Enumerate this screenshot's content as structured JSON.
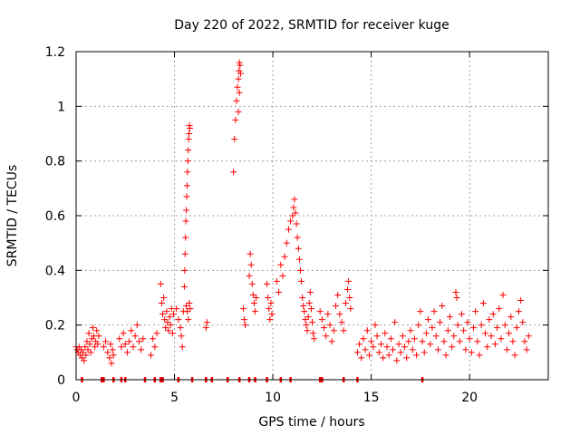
{
  "chart_data": {
    "type": "scatter",
    "title": "Day 220 of 2022, SRMTID for receiver kuge",
    "xlabel": "GPS time / hours",
    "ylabel": "SRMTID / TECUs",
    "xlim": [
      0,
      24
    ],
    "ylim": [
      0,
      1.2
    ],
    "x_ticks": [
      0,
      5,
      10,
      15,
      20
    ],
    "x_tick_labels": [
      "0",
      "5",
      "10",
      "15",
      "20"
    ],
    "y_ticks": [
      0,
      0.2,
      0.4,
      0.6,
      0.8,
      1.0,
      1.2
    ],
    "y_tick_labels": [
      "0",
      "0.2",
      "0.4",
      "0.6",
      "0.8",
      "1",
      "1.2"
    ],
    "grid": true,
    "marker": "plus",
    "color": "#ff0000",
    "series": [
      {
        "name": "SRMTID",
        "points": [
          [
            0.0,
            0.12
          ],
          [
            0.05,
            0.11
          ],
          [
            0.1,
            0.1
          ],
          [
            0.15,
            0.12
          ],
          [
            0.2,
            0.09
          ],
          [
            0.25,
            0.11
          ],
          [
            0.3,
            0.08
          ],
          [
            0.35,
            0.1
          ],
          [
            0.4,
            0.07
          ],
          [
            0.45,
            0.12
          ],
          [
            0.5,
            0.09
          ],
          [
            0.55,
            0.14
          ],
          [
            0.6,
            0.11
          ],
          [
            0.65,
            0.17
          ],
          [
            0.7,
            0.13
          ],
          [
            0.75,
            0.1
          ],
          [
            0.8,
            0.15
          ],
          [
            0.85,
            0.19
          ],
          [
            0.9,
            0.16
          ],
          [
            0.95,
            0.12
          ],
          [
            1.0,
            0.14
          ],
          [
            1.05,
            0.18
          ],
          [
            1.1,
            0.13
          ],
          [
            1.15,
            0.16
          ],
          [
            1.4,
            0.12
          ],
          [
            1.5,
            0.14
          ],
          [
            1.6,
            0.1
          ],
          [
            1.7,
            0.08
          ],
          [
            1.75,
            0.13
          ],
          [
            1.8,
            0.06
          ],
          [
            1.85,
            0.11
          ],
          [
            1.9,
            0.09
          ],
          [
            2.2,
            0.15
          ],
          [
            2.3,
            0.12
          ],
          [
            2.4,
            0.17
          ],
          [
            2.5,
            0.13
          ],
          [
            2.6,
            0.1
          ],
          [
            2.7,
            0.14
          ],
          [
            2.8,
            0.18
          ],
          [
            2.9,
            0.12
          ],
          [
            3.0,
            0.16
          ],
          [
            3.1,
            0.2
          ],
          [
            3.2,
            0.14
          ],
          [
            3.3,
            0.11
          ],
          [
            3.4,
            0.15
          ],
          [
            3.8,
            0.09
          ],
          [
            3.9,
            0.15
          ],
          [
            4.0,
            0.12
          ],
          [
            4.1,
            0.17
          ],
          [
            4.3,
            0.35
          ],
          [
            4.35,
            0.28
          ],
          [
            4.4,
            0.24
          ],
          [
            4.45,
            0.3
          ],
          [
            4.5,
            0.22
          ],
          [
            4.55,
            0.19
          ],
          [
            4.6,
            0.25
          ],
          [
            4.65,
            0.21
          ],
          [
            4.7,
            0.18
          ],
          [
            4.75,
            0.23
          ],
          [
            4.8,
            0.2
          ],
          [
            4.85,
            0.26
          ],
          [
            4.9,
            0.17
          ],
          [
            4.95,
            0.24
          ],
          [
            5.1,
            0.26
          ],
          [
            5.2,
            0.22
          ],
          [
            5.3,
            0.19
          ],
          [
            5.35,
            0.16
          ],
          [
            5.4,
            0.12
          ],
          [
            5.45,
            0.25
          ],
          [
            5.5,
            0.34
          ],
          [
            5.52,
            0.4
          ],
          [
            5.54,
            0.46
          ],
          [
            5.56,
            0.52
          ],
          [
            5.58,
            0.58
          ],
          [
            5.6,
            0.62
          ],
          [
            5.62,
            0.67
          ],
          [
            5.64,
            0.71
          ],
          [
            5.66,
            0.76
          ],
          [
            5.68,
            0.8
          ],
          [
            5.7,
            0.84
          ],
          [
            5.72,
            0.88
          ],
          [
            5.74,
            0.9
          ],
          [
            5.76,
            0.93
          ],
          [
            5.78,
            0.92
          ],
          [
            5.6,
            0.27
          ],
          [
            5.65,
            0.25
          ],
          [
            5.7,
            0.22
          ],
          [
            5.75,
            0.28
          ],
          [
            5.8,
            0.26
          ],
          [
            6.6,
            0.19
          ],
          [
            6.65,
            0.21
          ],
          [
            8.0,
            0.76
          ],
          [
            8.05,
            0.88
          ],
          [
            8.1,
            0.95
          ],
          [
            8.15,
            1.02
          ],
          [
            8.2,
            1.07
          ],
          [
            8.25,
            1.1
          ],
          [
            8.28,
            1.13
          ],
          [
            8.3,
            1.16
          ],
          [
            8.33,
            1.15
          ],
          [
            8.36,
            1.12
          ],
          [
            8.3,
            1.05
          ],
          [
            8.25,
            0.98
          ],
          [
            8.5,
            0.26
          ],
          [
            8.55,
            0.22
          ],
          [
            8.6,
            0.2
          ],
          [
            8.8,
            0.38
          ],
          [
            8.85,
            0.46
          ],
          [
            8.9,
            0.42
          ],
          [
            8.95,
            0.35
          ],
          [
            9.0,
            0.31
          ],
          [
            9.05,
            0.28
          ],
          [
            9.1,
            0.25
          ],
          [
            9.15,
            0.3
          ],
          [
            9.7,
            0.35
          ],
          [
            9.75,
            0.3
          ],
          [
            9.8,
            0.26
          ],
          [
            9.85,
            0.22
          ],
          [
            9.9,
            0.28
          ],
          [
            9.95,
            0.24
          ],
          [
            10.2,
            0.36
          ],
          [
            10.3,
            0.32
          ],
          [
            10.4,
            0.42
          ],
          [
            10.5,
            0.38
          ],
          [
            10.6,
            0.45
          ],
          [
            10.7,
            0.5
          ],
          [
            10.8,
            0.55
          ],
          [
            10.9,
            0.58
          ],
          [
            11.0,
            0.6
          ],
          [
            11.05,
            0.63
          ],
          [
            11.1,
            0.66
          ],
          [
            11.15,
            0.61
          ],
          [
            11.2,
            0.57
          ],
          [
            11.25,
            0.52
          ],
          [
            11.3,
            0.48
          ],
          [
            11.35,
            0.44
          ],
          [
            11.4,
            0.4
          ],
          [
            11.45,
            0.36
          ],
          [
            11.5,
            0.3
          ],
          [
            11.55,
            0.27
          ],
          [
            11.6,
            0.25
          ],
          [
            11.65,
            0.22
          ],
          [
            11.7,
            0.2
          ],
          [
            11.75,
            0.18
          ],
          [
            11.8,
            0.23
          ],
          [
            11.85,
            0.28
          ],
          [
            11.9,
            0.32
          ],
          [
            11.95,
            0.26
          ],
          [
            12.0,
            0.21
          ],
          [
            12.05,
            0.17
          ],
          [
            12.1,
            0.15
          ],
          [
            12.4,
            0.25
          ],
          [
            12.5,
            0.22
          ],
          [
            12.6,
            0.19
          ],
          [
            12.7,
            0.16
          ],
          [
            12.8,
            0.24
          ],
          [
            12.9,
            0.2
          ],
          [
            13.0,
            0.14
          ],
          [
            13.1,
            0.18
          ],
          [
            13.2,
            0.27
          ],
          [
            13.3,
            0.31
          ],
          [
            13.4,
            0.24
          ],
          [
            13.5,
            0.21
          ],
          [
            13.6,
            0.18
          ],
          [
            13.7,
            0.28
          ],
          [
            13.8,
            0.33
          ],
          [
            13.85,
            0.36
          ],
          [
            13.9,
            0.3
          ],
          [
            13.95,
            0.26
          ],
          [
            14.3,
            0.1
          ],
          [
            14.4,
            0.13
          ],
          [
            14.5,
            0.08
          ],
          [
            14.6,
            0.15
          ],
          [
            14.7,
            0.11
          ],
          [
            14.8,
            0.18
          ],
          [
            14.9,
            0.09
          ],
          [
            15.0,
            0.14
          ],
          [
            15.1,
            0.12
          ],
          [
            15.2,
            0.2
          ],
          [
            15.3,
            0.16
          ],
          [
            15.4,
            0.1
          ],
          [
            15.5,
            0.13
          ],
          [
            15.6,
            0.08
          ],
          [
            15.7,
            0.17
          ],
          [
            15.8,
            0.12
          ],
          [
            15.9,
            0.09
          ],
          [
            16.0,
            0.15
          ],
          [
            16.1,
            0.11
          ],
          [
            16.2,
            0.21
          ],
          [
            16.3,
            0.07
          ],
          [
            16.4,
            0.13
          ],
          [
            16.5,
            0.1
          ],
          [
            16.6,
            0.16
          ],
          [
            16.7,
            0.12
          ],
          [
            16.8,
            0.08
          ],
          [
            16.9,
            0.14
          ],
          [
            17.0,
            0.18
          ],
          [
            17.1,
            0.11
          ],
          [
            17.2,
            0.15
          ],
          [
            17.3,
            0.09
          ],
          [
            17.4,
            0.2
          ],
          [
            17.5,
            0.25
          ],
          [
            17.6,
            0.14
          ],
          [
            17.7,
            0.1
          ],
          [
            17.8,
            0.17
          ],
          [
            17.9,
            0.22
          ],
          [
            18.0,
            0.13
          ],
          [
            18.1,
            0.19
          ],
          [
            18.2,
            0.25
          ],
          [
            18.3,
            0.16
          ],
          [
            18.4,
            0.11
          ],
          [
            18.5,
            0.21
          ],
          [
            18.6,
            0.27
          ],
          [
            18.7,
            0.14
          ],
          [
            18.8,
            0.09
          ],
          [
            18.9,
            0.18
          ],
          [
            19.0,
            0.23
          ],
          [
            19.1,
            0.12
          ],
          [
            19.2,
            0.16
          ],
          [
            19.3,
            0.32
          ],
          [
            19.35,
            0.3
          ],
          [
            19.4,
            0.2
          ],
          [
            19.5,
            0.14
          ],
          [
            19.6,
            0.24
          ],
          [
            19.7,
            0.18
          ],
          [
            19.8,
            0.11
          ],
          [
            19.9,
            0.21
          ],
          [
            20.0,
            0.15
          ],
          [
            20.1,
            0.1
          ],
          [
            20.2,
            0.19
          ],
          [
            20.3,
            0.25
          ],
          [
            20.4,
            0.14
          ],
          [
            20.5,
            0.09
          ],
          [
            20.6,
            0.2
          ],
          [
            20.7,
            0.28
          ],
          [
            20.8,
            0.17
          ],
          [
            20.9,
            0.12
          ],
          [
            21.0,
            0.22
          ],
          [
            21.1,
            0.16
          ],
          [
            21.2,
            0.24
          ],
          [
            21.3,
            0.13
          ],
          [
            21.4,
            0.19
          ],
          [
            21.5,
            0.26
          ],
          [
            21.6,
            0.15
          ],
          [
            21.7,
            0.31
          ],
          [
            21.8,
            0.2
          ],
          [
            21.9,
            0.11
          ],
          [
            22.0,
            0.17
          ],
          [
            22.1,
            0.23
          ],
          [
            22.2,
            0.14
          ],
          [
            22.3,
            0.09
          ],
          [
            22.4,
            0.19
          ],
          [
            22.5,
            0.25
          ],
          [
            22.6,
            0.29
          ],
          [
            22.7,
            0.21
          ],
          [
            22.8,
            0.14
          ],
          [
            22.9,
            0.11
          ],
          [
            23.0,
            0.16
          ]
        ]
      }
    ],
    "zero_markers": [
      0.3,
      1.3,
      1.4,
      1.9,
      2.3,
      2.5,
      3.5,
      4.0,
      4.3,
      4.4,
      5.2,
      5.9,
      6.6,
      6.9,
      7.7,
      8.3,
      8.8,
      9.1,
      9.7,
      10.4,
      10.9,
      12.4,
      12.5,
      13.6,
      14.3,
      17.6
    ]
  }
}
